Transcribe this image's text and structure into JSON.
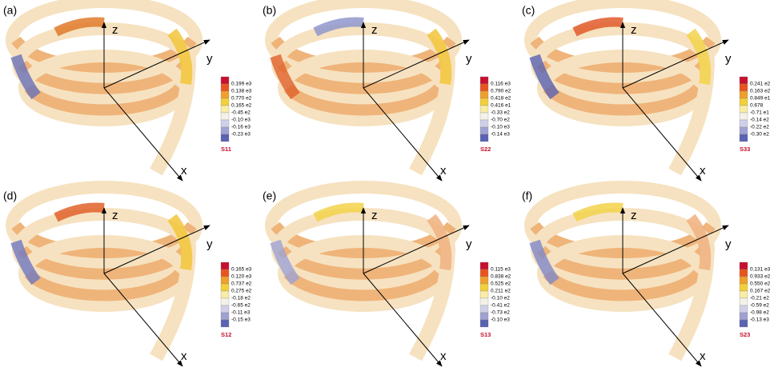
{
  "panels": [
    {
      "label": "(a)",
      "axes": [
        "z",
        "y",
        "x"
      ],
      "legend": [
        "0.199 e3",
        "0.138 e3",
        "0.770 e2",
        "0.165 e2",
        "-0.45 e2",
        "-0.10 e3",
        "-0.16 e3",
        "-0.23 e3"
      ],
      "title": "S11"
    },
    {
      "label": "(b)",
      "axes": [
        "z",
        "y",
        "x"
      ],
      "legend": [
        "0.116 e3",
        "0.790 e2",
        "0.418 e2",
        "0.416 e1",
        "-0.33 e2",
        "-0.70 e2",
        "-0.10 e3",
        "-0.14 e3"
      ],
      "title": "S22"
    },
    {
      "label": "(c)",
      "axes": [
        "z",
        "y",
        "x"
      ],
      "legend": [
        "0.241 e2",
        "0.163 e2",
        "0.849 e1",
        "0.678",
        "-0.71 e1",
        "-0.14 e2",
        "-0.22 e2",
        "-0.30 e2"
      ],
      "title": "S33"
    },
    {
      "label": "(d)",
      "axes": [
        "z",
        "y",
        "x"
      ],
      "legend": [
        "0.165 e3",
        "0.120 e3",
        "0.737 e2",
        "0.275 e2",
        "-0.18 e2",
        "-0.65 e2",
        "-0.11 e3",
        "-0.15 e3"
      ],
      "title": "S12"
    },
    {
      "label": "(e)",
      "axes": [
        "z",
        "y",
        "x"
      ],
      "legend": [
        "0.115 e3",
        "0.838 e2",
        "0.525 e2",
        "0.211 e2",
        "-0.10 e2",
        "-0.41 e2",
        "-0.73 e2",
        "-0.10 e3"
      ],
      "title": "S13"
    },
    {
      "label": "(f)",
      "axes": [
        "z",
        "y",
        "x"
      ],
      "legend": [
        "0.131 e3",
        "0.933 e2",
        "0.550 e2",
        "0.167 e2",
        "-0.21 e2",
        "-0.59 e2",
        "-0.98 e2",
        "-0.13 e3"
      ],
      "title": "S23"
    }
  ]
}
